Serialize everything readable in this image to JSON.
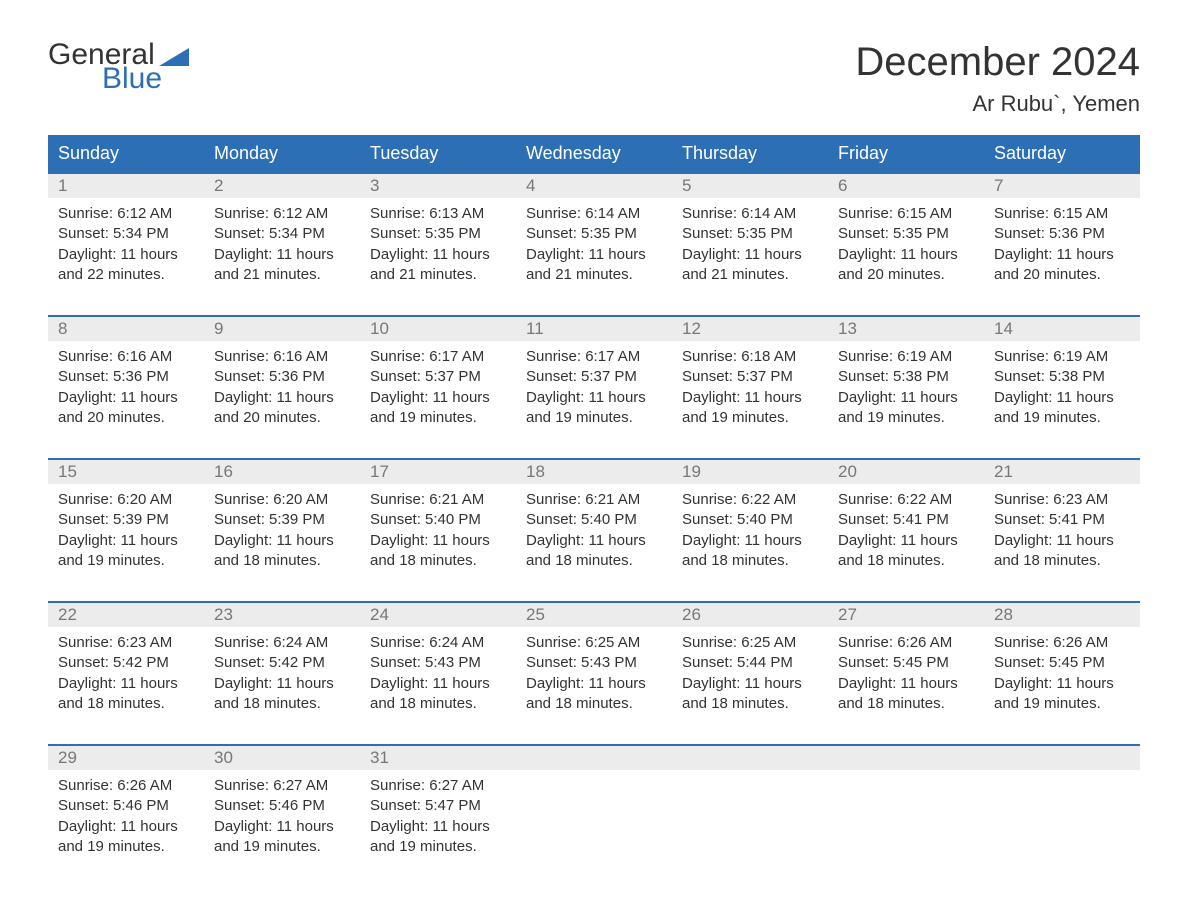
{
  "logo": {
    "word1": "General",
    "word2": "Blue",
    "accent_color": "#2d6fb5"
  },
  "title": "December 2024",
  "subtitle": "Ar Rubu`, Yemen",
  "colors": {
    "header_bg": "#2d6fb5",
    "header_text": "#ffffff",
    "daynum_bg": "#ececec",
    "daynum_text": "#777777",
    "body_text": "#333333",
    "week_border": "#2d6fb5"
  },
  "days_of_week": [
    "Sunday",
    "Monday",
    "Tuesday",
    "Wednesday",
    "Thursday",
    "Friday",
    "Saturday"
  ],
  "weeks": [
    [
      {
        "n": "1",
        "sunrise": "6:12 AM",
        "sunset": "5:34 PM",
        "daylight": "11 hours and 22 minutes."
      },
      {
        "n": "2",
        "sunrise": "6:12 AM",
        "sunset": "5:34 PM",
        "daylight": "11 hours and 21 minutes."
      },
      {
        "n": "3",
        "sunrise": "6:13 AM",
        "sunset": "5:35 PM",
        "daylight": "11 hours and 21 minutes."
      },
      {
        "n": "4",
        "sunrise": "6:14 AM",
        "sunset": "5:35 PM",
        "daylight": "11 hours and 21 minutes."
      },
      {
        "n": "5",
        "sunrise": "6:14 AM",
        "sunset": "5:35 PM",
        "daylight": "11 hours and 21 minutes."
      },
      {
        "n": "6",
        "sunrise": "6:15 AM",
        "sunset": "5:35 PM",
        "daylight": "11 hours and 20 minutes."
      },
      {
        "n": "7",
        "sunrise": "6:15 AM",
        "sunset": "5:36 PM",
        "daylight": "11 hours and 20 minutes."
      }
    ],
    [
      {
        "n": "8",
        "sunrise": "6:16 AM",
        "sunset": "5:36 PM",
        "daylight": "11 hours and 20 minutes."
      },
      {
        "n": "9",
        "sunrise": "6:16 AM",
        "sunset": "5:36 PM",
        "daylight": "11 hours and 20 minutes."
      },
      {
        "n": "10",
        "sunrise": "6:17 AM",
        "sunset": "5:37 PM",
        "daylight": "11 hours and 19 minutes."
      },
      {
        "n": "11",
        "sunrise": "6:17 AM",
        "sunset": "5:37 PM",
        "daylight": "11 hours and 19 minutes."
      },
      {
        "n": "12",
        "sunrise": "6:18 AM",
        "sunset": "5:37 PM",
        "daylight": "11 hours and 19 minutes."
      },
      {
        "n": "13",
        "sunrise": "6:19 AM",
        "sunset": "5:38 PM",
        "daylight": "11 hours and 19 minutes."
      },
      {
        "n": "14",
        "sunrise": "6:19 AM",
        "sunset": "5:38 PM",
        "daylight": "11 hours and 19 minutes."
      }
    ],
    [
      {
        "n": "15",
        "sunrise": "6:20 AM",
        "sunset": "5:39 PM",
        "daylight": "11 hours and 19 minutes."
      },
      {
        "n": "16",
        "sunrise": "6:20 AM",
        "sunset": "5:39 PM",
        "daylight": "11 hours and 18 minutes."
      },
      {
        "n": "17",
        "sunrise": "6:21 AM",
        "sunset": "5:40 PM",
        "daylight": "11 hours and 18 minutes."
      },
      {
        "n": "18",
        "sunrise": "6:21 AM",
        "sunset": "5:40 PM",
        "daylight": "11 hours and 18 minutes."
      },
      {
        "n": "19",
        "sunrise": "6:22 AM",
        "sunset": "5:40 PM",
        "daylight": "11 hours and 18 minutes."
      },
      {
        "n": "20",
        "sunrise": "6:22 AM",
        "sunset": "5:41 PM",
        "daylight": "11 hours and 18 minutes."
      },
      {
        "n": "21",
        "sunrise": "6:23 AM",
        "sunset": "5:41 PM",
        "daylight": "11 hours and 18 minutes."
      }
    ],
    [
      {
        "n": "22",
        "sunrise": "6:23 AM",
        "sunset": "5:42 PM",
        "daylight": "11 hours and 18 minutes."
      },
      {
        "n": "23",
        "sunrise": "6:24 AM",
        "sunset": "5:42 PM",
        "daylight": "11 hours and 18 minutes."
      },
      {
        "n": "24",
        "sunrise": "6:24 AM",
        "sunset": "5:43 PM",
        "daylight": "11 hours and 18 minutes."
      },
      {
        "n": "25",
        "sunrise": "6:25 AM",
        "sunset": "5:43 PM",
        "daylight": "11 hours and 18 minutes."
      },
      {
        "n": "26",
        "sunrise": "6:25 AM",
        "sunset": "5:44 PM",
        "daylight": "11 hours and 18 minutes."
      },
      {
        "n": "27",
        "sunrise": "6:26 AM",
        "sunset": "5:45 PM",
        "daylight": "11 hours and 18 minutes."
      },
      {
        "n": "28",
        "sunrise": "6:26 AM",
        "sunset": "5:45 PM",
        "daylight": "11 hours and 19 minutes."
      }
    ],
    [
      {
        "n": "29",
        "sunrise": "6:26 AM",
        "sunset": "5:46 PM",
        "daylight": "11 hours and 19 minutes."
      },
      {
        "n": "30",
        "sunrise": "6:27 AM",
        "sunset": "5:46 PM",
        "daylight": "11 hours and 19 minutes."
      },
      {
        "n": "31",
        "sunrise": "6:27 AM",
        "sunset": "5:47 PM",
        "daylight": "11 hours and 19 minutes."
      },
      null,
      null,
      null,
      null
    ]
  ],
  "labels": {
    "sunrise": "Sunrise: ",
    "sunset": "Sunset: ",
    "daylight": "Daylight: "
  }
}
